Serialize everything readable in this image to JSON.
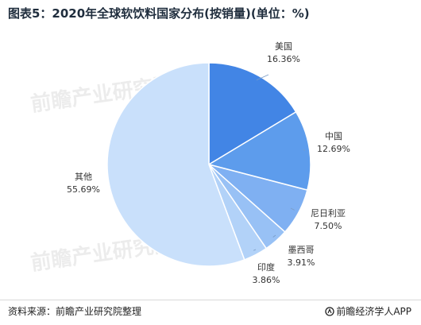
{
  "title": "图表5：2020年全球软饮料国家分布(按销量)(单位：%)",
  "chart_data": {
    "type": "pie",
    "slices": [
      {
        "label": "美国",
        "value": 16.36,
        "display": "16.36%",
        "color": "#4285e5"
      },
      {
        "label": "中国",
        "value": 12.69,
        "display": "12.69%",
        "color": "#5d9cec"
      },
      {
        "label": "尼日利亚",
        "value": 7.5,
        "display": "7.50%",
        "color": "#7fb0f2"
      },
      {
        "label": "墨西哥",
        "value": 3.91,
        "display": "3.91%",
        "color": "#98c1f5"
      },
      {
        "label": "印度",
        "value": 3.86,
        "display": "3.86%",
        "color": "#b2d2f8"
      },
      {
        "label": "其他",
        "value": 55.69,
        "display": "55.69%",
        "color": "#c9e0fb"
      }
    ]
  },
  "watermark": "前瞻产业研究院",
  "footer": {
    "source": "资料来源：前瞻产业研究院整理",
    "brand": "前瞻经济学人APP"
  }
}
